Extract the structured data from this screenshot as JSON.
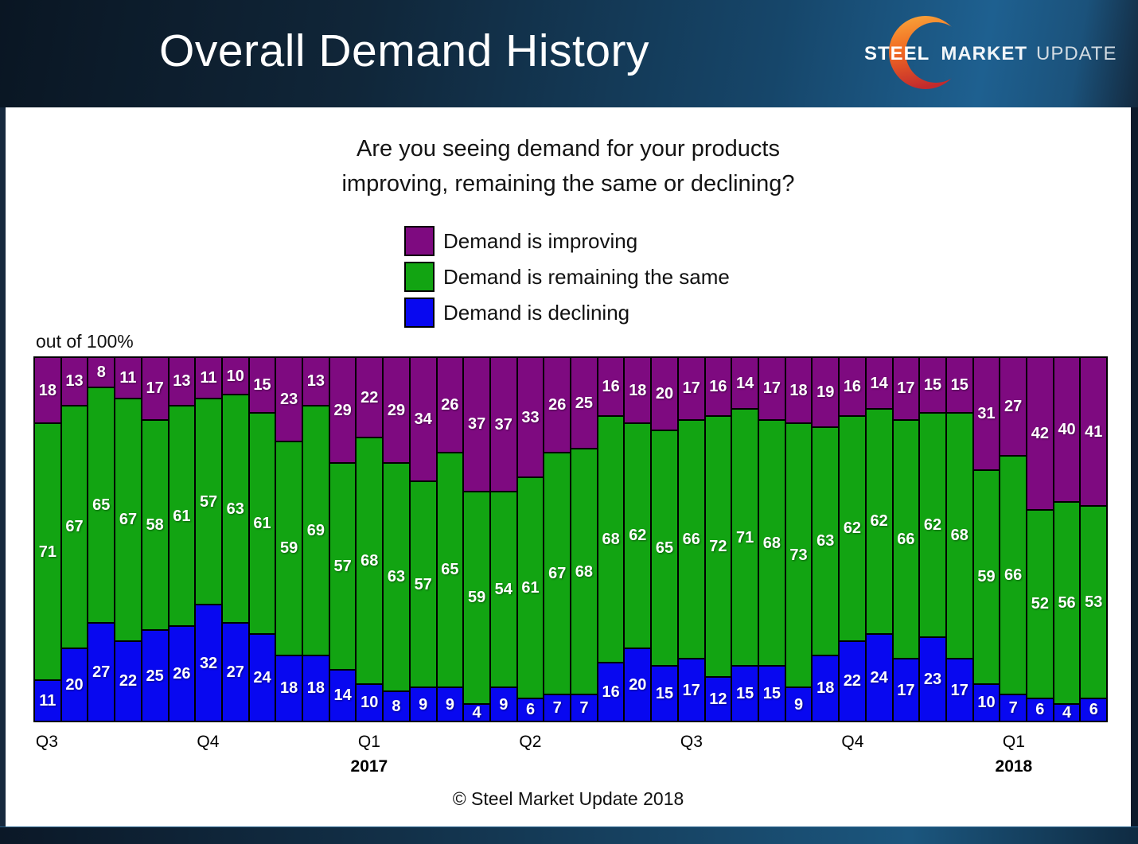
{
  "header": {
    "title": "Overall Demand History",
    "logo": {
      "word1": "STEEL",
      "word2": "MARKET",
      "word3": "UPDATE"
    }
  },
  "question": {
    "line1": "Are you seeing demand for your products",
    "line2": "improving, remaining the same or declining?"
  },
  "axis_note": "out of 100%",
  "footer": {
    "copyright": "© Steel Market Update 2018"
  },
  "colors": {
    "improving": "#7E0A80",
    "remaining_same": "#12A412",
    "declining": "#0808F0",
    "brand_orange": "#F16A22",
    "header_navy": "#102639"
  },
  "chart_data": {
    "type": "bar",
    "stacked": true,
    "percent_total": 100,
    "title": "Overall Demand History",
    "ylabel": "out of 100%",
    "ylim": [
      0,
      100
    ],
    "grid": false,
    "legend_position": "top-center",
    "series": [
      {
        "name": "Demand is improving",
        "color": "#7E0A80",
        "values": [
          18,
          13,
          8,
          11,
          17,
          13,
          11,
          10,
          15,
          23,
          13,
          29,
          22,
          29,
          34,
          26,
          37,
          37,
          33,
          26,
          25,
          16,
          18,
          20,
          17,
          16,
          14,
          17,
          18,
          19,
          16,
          14,
          17,
          15,
          15,
          31,
          27,
          42,
          40,
          41
        ]
      },
      {
        "name": "Demand is remaining the same",
        "color": "#12A412",
        "values": [
          71,
          67,
          65,
          67,
          58,
          61,
          57,
          63,
          61,
          59,
          69,
          57,
          68,
          63,
          57,
          65,
          59,
          54,
          61,
          67,
          68,
          68,
          62,
          65,
          66,
          72,
          71,
          68,
          73,
          63,
          62,
          62,
          66,
          62,
          68,
          59,
          66,
          52,
          56,
          53
        ]
      },
      {
        "name": "Demand is declining",
        "color": "#0808F0",
        "values": [
          11,
          20,
          27,
          22,
          25,
          26,
          32,
          27,
          24,
          18,
          18,
          14,
          10,
          8,
          9,
          9,
          4,
          9,
          6,
          7,
          7,
          16,
          20,
          15,
          17,
          12,
          15,
          15,
          9,
          18,
          22,
          24,
          17,
          23,
          17,
          10,
          7,
          6,
          4,
          6
        ]
      }
    ],
    "x_axis": {
      "ticks": [
        {
          "label": "Q3",
          "index": 0
        },
        {
          "label": "Q4",
          "index": 6
        },
        {
          "label": "Q1",
          "index": 12,
          "year": "2017"
        },
        {
          "label": "Q2",
          "index": 18
        },
        {
          "label": "Q3",
          "index": 24
        },
        {
          "label": "Q4",
          "index": 30
        },
        {
          "label": "Q1",
          "index": 36,
          "year": "2018"
        }
      ]
    }
  }
}
